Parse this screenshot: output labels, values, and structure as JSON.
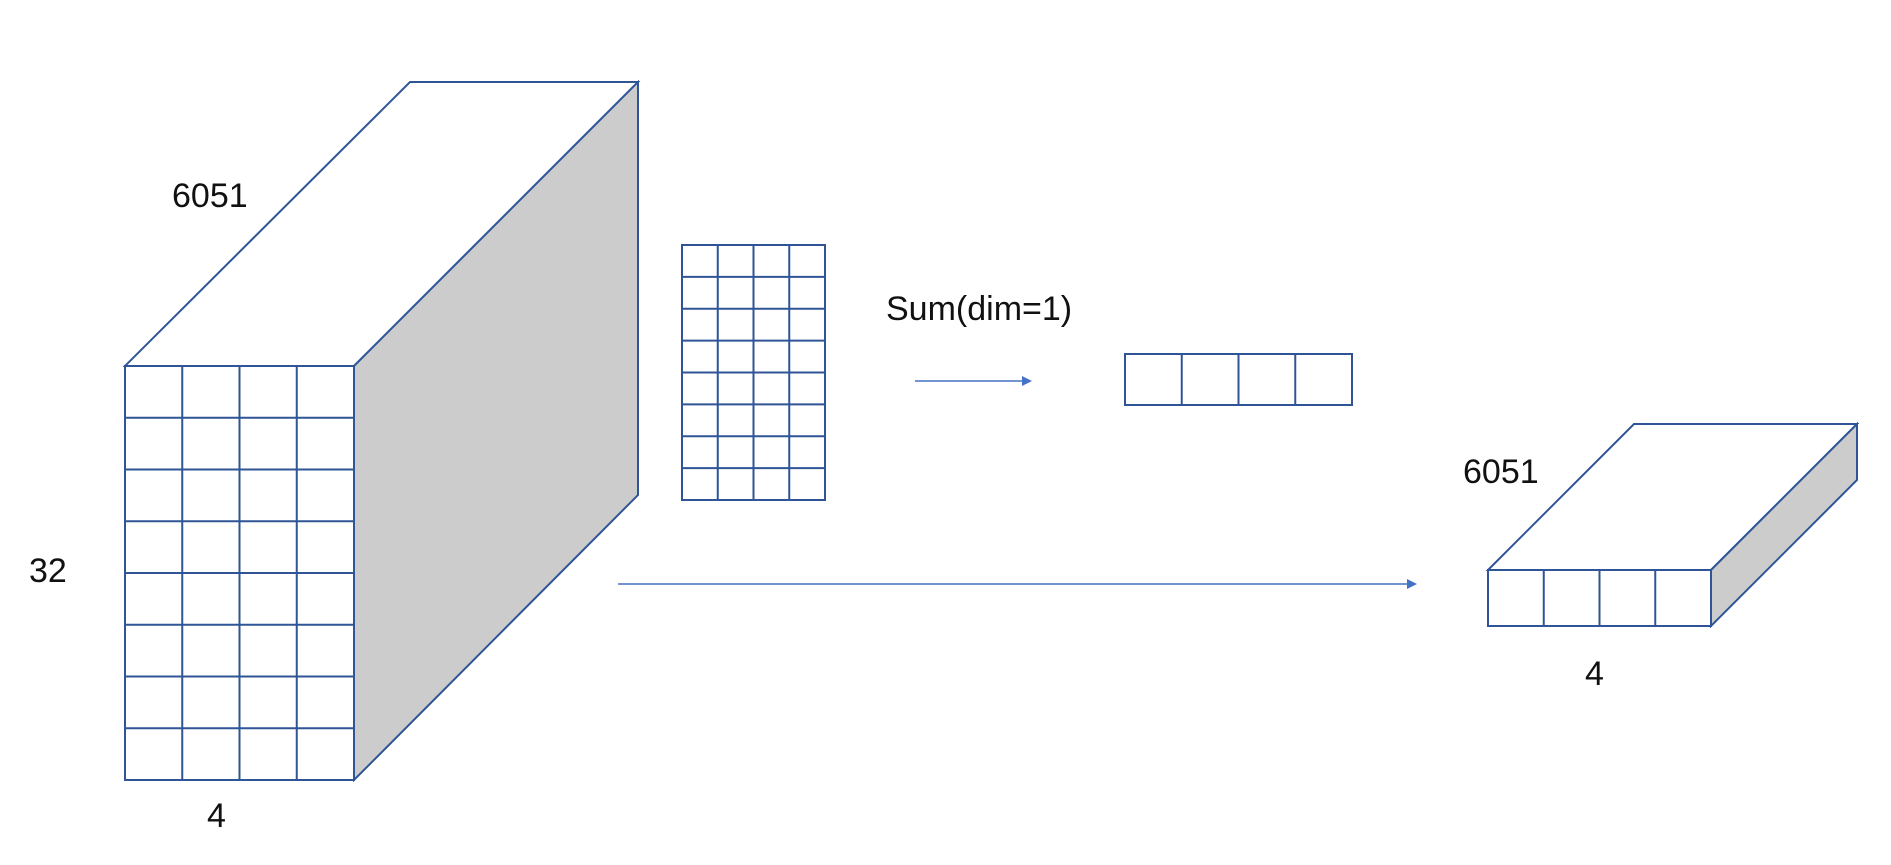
{
  "labels": {
    "tensor_depth": "6051",
    "tensor_height": "32",
    "tensor_width": "4",
    "operation": "Sum(dim=1)",
    "result_depth": "6051",
    "result_width": "4"
  },
  "colors": {
    "stroke": "#2F5597",
    "arrow": "#4472C4",
    "side_face": "#cccccc",
    "front_face": "#ffffff"
  },
  "input_tensor": {
    "front_grid": {
      "rows": 8,
      "cols": 4
    }
  },
  "slice_matrix": {
    "rows": 8,
    "cols": 4
  },
  "summed_vector": {
    "rows": 1,
    "cols": 4
  },
  "output_tensor": {
    "front_grid": {
      "rows": 1,
      "cols": 4
    }
  }
}
